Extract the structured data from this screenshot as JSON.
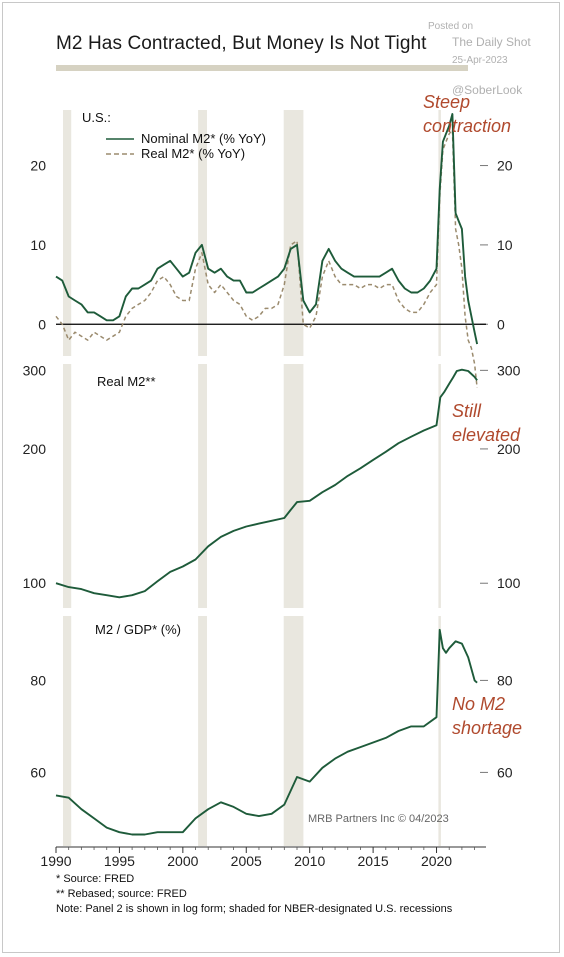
{
  "header": {
    "title": "M2 Has Contracted, But Money Is Not Tight"
  },
  "watermark": {
    "posted": "Posted on",
    "source": "The Daily Shot",
    "date": "25-Apr-2023",
    "handle": "@SoberLook"
  },
  "footer": {
    "note1": "*  Source: FRED",
    "note2": "** Rebased; source: FRED",
    "note3": "Note: Panel 2 is shown in log form; shaded for NBER-designated U.S. recessions",
    "credit": "MRB Partners Inc © 04/2023"
  },
  "colors": {
    "nominal": "#1e5b3a",
    "real": "#9b8b6e",
    "annotation": "#b04a2e",
    "recession": "#e9e7df",
    "axis": "#555555"
  },
  "chart_data": [
    {
      "type": "line",
      "title": "U.S.:",
      "annotation": [
        "Steep",
        "contraction"
      ],
      "xlim": [
        1990,
        2023.9
      ],
      "ylim": [
        -4,
        27
      ],
      "y_ticks": [
        0,
        10,
        20
      ],
      "x_ticks": [
        1990,
        1995,
        2000,
        2005,
        2010,
        2015,
        2020
      ],
      "recessions": [
        [
          1990.55,
          1991.2
        ],
        [
          2001.2,
          2001.9
        ],
        [
          2007.95,
          2009.5
        ],
        [
          2020.15,
          2020.35
        ]
      ],
      "legend": [
        "Nominal M2* (% YoY)",
        "Real M2* (% YoY)"
      ],
      "series": [
        {
          "name": "Nominal M2* (% YoY)",
          "style": "solid",
          "x": [
            1990,
            1990.5,
            1991,
            1991.5,
            1992,
            1992.5,
            1993,
            1993.5,
            1994,
            1994.5,
            1995,
            1995.5,
            1996,
            1996.5,
            1997,
            1997.5,
            1998,
            1998.5,
            1999,
            1999.5,
            2000,
            2000.5,
            2001,
            2001.5,
            2002,
            2002.5,
            2003,
            2003.5,
            2004,
            2004.5,
            2005,
            2005.5,
            2006,
            2006.5,
            2007,
            2007.5,
            2008,
            2008.5,
            2009,
            2009.5,
            2010,
            2010.5,
            2011,
            2011.5,
            2012,
            2012.5,
            2013,
            2013.5,
            2014,
            2014.5,
            2015,
            2015.5,
            2016,
            2016.5,
            2017,
            2017.5,
            2018,
            2018.5,
            2019,
            2019.5,
            2020,
            2020.25,
            2020.5,
            2020.75,
            2021,
            2021.25,
            2021.5,
            2021.75,
            2022,
            2022.25,
            2022.5,
            2022.75,
            2023,
            2023.2
          ],
          "y": [
            6,
            5.5,
            3.5,
            3,
            2.5,
            1.5,
            1.5,
            1,
            0.5,
            0.5,
            1,
            3.5,
            4.5,
            4.5,
            5,
            5.5,
            7,
            7.5,
            8,
            7,
            6,
            6.5,
            9,
            10,
            7,
            6.5,
            7,
            6,
            5.5,
            5.5,
            4,
            4,
            4.5,
            5,
            5.5,
            6,
            7,
            9.5,
            10,
            3,
            1.5,
            2.5,
            8,
            9.5,
            8,
            7,
            6.5,
            6,
            6,
            6,
            6,
            6,
            6.5,
            7,
            5.5,
            4.5,
            4,
            4,
            4.5,
            5.5,
            7,
            17,
            23,
            24,
            25,
            26.5,
            14,
            13,
            12,
            6,
            3,
            1,
            -1,
            -2.5
          ]
        },
        {
          "name": "Real M2* (% YoY)",
          "style": "dashed",
          "x": [
            1990,
            1990.5,
            1991,
            1991.5,
            1992,
            1992.5,
            1993,
            1993.5,
            1994,
            1994.5,
            1995,
            1995.5,
            1996,
            1996.5,
            1997,
            1997.5,
            1998,
            1998.5,
            1999,
            1999.5,
            2000,
            2000.5,
            2001,
            2001.5,
            2002,
            2002.5,
            2003,
            2003.5,
            2004,
            2004.5,
            2005,
            2005.5,
            2006,
            2006.5,
            2007,
            2007.5,
            2008,
            2008.5,
            2009,
            2009.5,
            2010,
            2010.5,
            2011,
            2011.5,
            2012,
            2012.5,
            2013,
            2013.5,
            2014,
            2014.5,
            2015,
            2015.5,
            2016,
            2016.5,
            2017,
            2017.5,
            2018,
            2018.5,
            2019,
            2019.5,
            2020,
            2020.25,
            2020.5,
            2020.75,
            2021,
            2021.25,
            2021.5,
            2021.75,
            2022,
            2022.25,
            2022.5,
            2022.75,
            2023,
            2023.2
          ],
          "y": [
            1,
            0,
            -2,
            -1,
            -1.5,
            -2,
            -1,
            -1.5,
            -2,
            -1.5,
            -1,
            1,
            2,
            2.5,
            3,
            4,
            5.5,
            6,
            5,
            3.5,
            3,
            3,
            7,
            9,
            5,
            4,
            5,
            4,
            3,
            2.5,
            1,
            0.5,
            1,
            2,
            2,
            2.5,
            5,
            10,
            10.5,
            0,
            -0.5,
            1,
            6,
            8,
            6,
            5,
            5,
            5,
            4.5,
            5,
            5,
            4.5,
            5,
            5,
            3,
            2,
            1.5,
            1.5,
            2.5,
            4,
            5,
            16,
            22,
            23,
            24,
            24.5,
            12,
            10,
            7,
            1,
            -2,
            -3,
            -5,
            -8
          ]
        }
      ]
    },
    {
      "type": "line",
      "title": "Real M2**",
      "annotation": [
        "Still",
        "elevated"
      ],
      "scale": "log",
      "xlim": [
        1990,
        2023.9
      ],
      "ylim": [
        88,
        310
      ],
      "y_ticks": [
        100,
        200,
        300
      ],
      "recessions": [
        [
          1990.55,
          1991.2
        ],
        [
          2001.2,
          2001.9
        ],
        [
          2007.95,
          2009.5
        ],
        [
          2020.15,
          2020.35
        ]
      ],
      "series": [
        {
          "name": "Real M2**",
          "x": [
            1990,
            1991,
            1992,
            1993,
            1994,
            1995,
            1996,
            1997,
            1998,
            1999,
            2000,
            2001,
            2002,
            2003,
            2004,
            2005,
            2006,
            2007,
            2008,
            2008.5,
            2009,
            2010,
            2011,
            2012,
            2013,
            2014,
            2015,
            2016,
            2017,
            2018,
            2019,
            2020,
            2020.3,
            2020.6,
            2021,
            2021.3,
            2021.6,
            2022,
            2022.5,
            2023,
            2023.2
          ],
          "y": [
            100,
            98,
            97,
            95,
            94,
            93,
            94,
            96,
            101,
            106,
            109,
            113,
            121,
            127,
            131,
            134,
            136,
            138,
            140,
            146,
            152,
            153,
            160,
            166,
            174,
            181,
            189,
            197,
            206,
            213,
            220,
            226,
            261,
            268,
            280,
            289,
            299,
            301,
            299,
            290,
            285
          ]
        }
      ]
    },
    {
      "type": "line",
      "title": "M2 / GDP* (%)",
      "annotation": [
        "No M2",
        "shortage"
      ],
      "xlim": [
        1990,
        2023.9
      ],
      "ylim": [
        44,
        94
      ],
      "y_ticks": [
        60,
        80
      ],
      "recessions": [
        [
          1990.55,
          1991.2
        ],
        [
          2001.2,
          2001.9
        ],
        [
          2007.95,
          2009.5
        ],
        [
          2020.15,
          2020.35
        ]
      ],
      "series": [
        {
          "name": "M2 / GDP* (%)",
          "x": [
            1990,
            1991,
            1992,
            1993,
            1994,
            1995,
            1996,
            1997,
            1998,
            1999,
            2000,
            2001,
            2002,
            2003,
            2004,
            2005,
            2006,
            2007,
            2008,
            2009,
            2010,
            2011,
            2012,
            2013,
            2014,
            2015,
            2016,
            2017,
            2018,
            2019,
            2020,
            2020.25,
            2020.5,
            2020.75,
            2021,
            2021.5,
            2022,
            2022.5,
            2023,
            2023.2
          ],
          "y": [
            55,
            54.5,
            52,
            50,
            48,
            47,
            46.5,
            46.5,
            47,
            47,
            47,
            50,
            52,
            53.5,
            52.5,
            51,
            50.5,
            51,
            53,
            59,
            58,
            61,
            63,
            64.5,
            65.5,
            66.5,
            67.5,
            69,
            70,
            70,
            72,
            91,
            87,
            86,
            87,
            88.5,
            88,
            85,
            80,
            79.5
          ]
        }
      ]
    }
  ]
}
